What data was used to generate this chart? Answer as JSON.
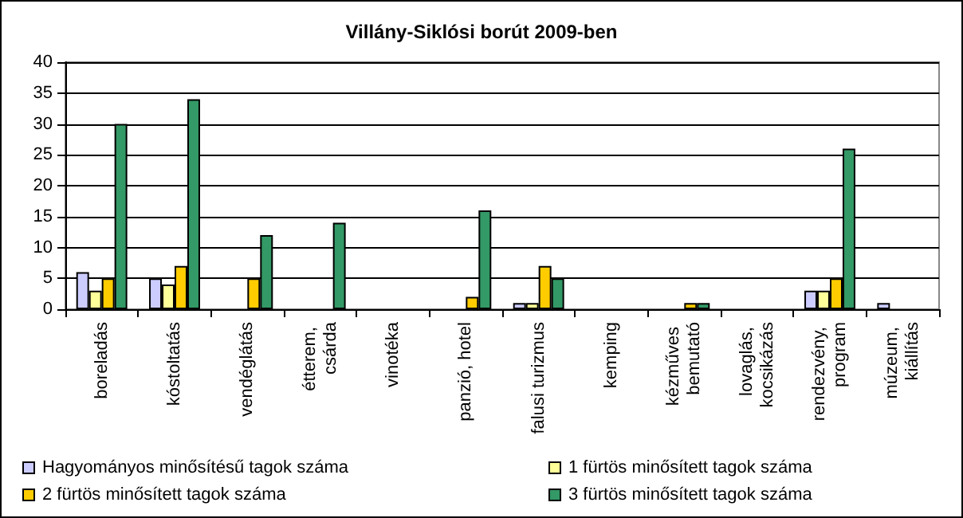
{
  "chart_data": {
    "type": "bar",
    "title": "Villány-Siklósi borút 2009-ben",
    "categories": [
      "boreladás",
      "kóstoltatás",
      "vendéglátás",
      "étterem, csárda",
      "vinotéka",
      "panzió, hotel",
      "falusi turizmus",
      "kemping",
      "kézműves bemutató",
      "lovaglás, kocsikázás",
      "rendezvény, program",
      "múzeum, kiállítás"
    ],
    "series": [
      {
        "name": "Hagyományos minősítésű tagok száma",
        "color": "#ccccff",
        "values": [
          6,
          5,
          null,
          null,
          null,
          null,
          1,
          null,
          null,
          null,
          3,
          1
        ]
      },
      {
        "name": "1 fürtös minősített tagok száma",
        "color": "#ffff99",
        "values": [
          3,
          4,
          null,
          null,
          null,
          null,
          1,
          null,
          null,
          null,
          3,
          null
        ]
      },
      {
        "name": "2 fürtös minősített tagok száma",
        "color": "#ffcc00",
        "values": [
          5,
          7,
          5,
          null,
          null,
          2,
          7,
          null,
          1,
          null,
          5,
          null
        ]
      },
      {
        "name": "3 fürtös minősített tagok száma",
        "color": "#339966",
        "values": [
          30,
          34,
          12,
          14,
          null,
          16,
          5,
          null,
          1,
          null,
          26,
          null
        ]
      }
    ],
    "ylim": [
      0,
      40
    ],
    "yticks": [
      0,
      5,
      10,
      15,
      20,
      25,
      30,
      35,
      40
    ],
    "grid": "y",
    "legend": "bottom"
  }
}
